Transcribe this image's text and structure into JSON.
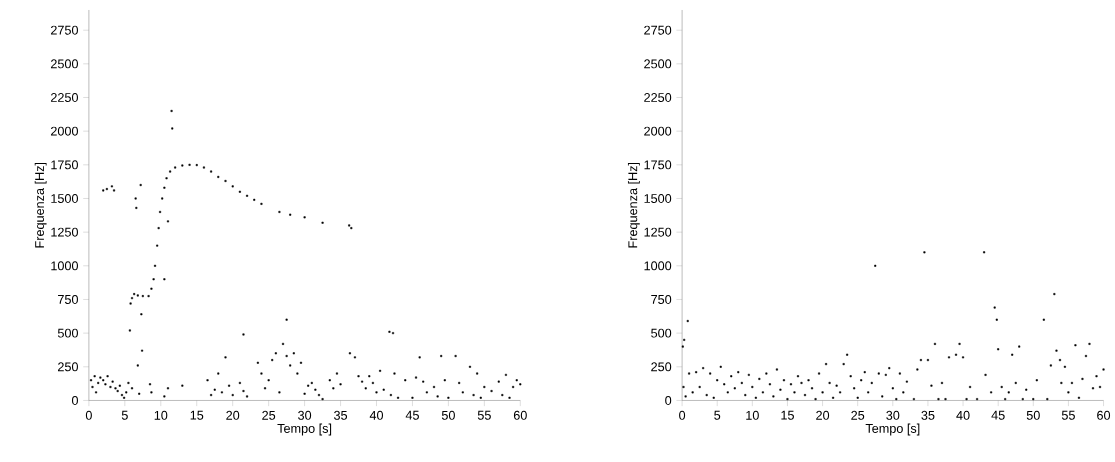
{
  "chart_data": [
    {
      "type": "scatter",
      "xlabel": "Tempo [s]",
      "ylabel": "Frequenza [Hz]",
      "color": "#000000",
      "marker": "square",
      "xlim": [
        0,
        60
      ],
      "ylim": [
        0,
        2900
      ],
      "xticks": [
        0,
        5,
        10,
        15,
        20,
        25,
        30,
        35,
        40,
        45,
        50,
        55,
        60
      ],
      "yticks": [
        0,
        250,
        500,
        750,
        1000,
        1250,
        1500,
        1750,
        2000,
        2250,
        2500,
        2750
      ],
      "x": [
        2,
        2.5,
        3.2,
        3.5,
        6.5,
        6.6,
        5.8,
        6,
        6.3,
        6.8,
        7.5,
        8.3,
        8.7,
        9,
        9.2,
        9.5,
        9.7,
        9.9,
        10.2,
        10.5,
        10.8,
        11.3,
        12,
        13,
        14,
        15,
        16,
        17,
        18,
        19,
        20,
        21,
        22,
        23,
        24,
        26.5,
        28,
        30,
        32.5,
        36.2,
        36.5,
        11.5,
        11.6,
        11,
        10.5,
        7.2,
        5.7,
        7.3,
        7.4,
        6.8,
        21.5,
        27.5,
        41.8,
        42.3,
        0.3,
        0.5,
        0.8,
        1,
        1.3,
        1.6,
        2,
        2.3,
        2.6,
        3,
        3.3,
        3.7,
        4,
        4.3,
        4.6,
        4.9,
        5.2,
        5.5,
        6,
        7,
        8.5,
        8.7,
        10.5,
        11,
        13,
        16.5,
        17,
        17.5,
        18,
        18.5,
        19,
        19.5,
        20,
        21,
        21.5,
        22,
        23.5,
        24,
        24.5,
        25,
        25.5,
        26,
        26.5,
        27,
        27.5,
        28,
        28.5,
        29,
        29.5,
        30,
        30.5,
        31,
        31.5,
        32,
        32.5,
        33.5,
        34,
        34.5,
        35,
        36.3,
        37,
        37.5,
        38,
        38.5,
        39,
        39.5,
        40,
        40.5,
        41,
        42,
        42.5,
        43,
        44,
        45,
        45.5,
        46,
        46.5,
        47,
        48,
        48.5,
        49,
        49.5,
        50,
        51,
        51.5,
        52,
        53,
        53.5,
        54,
        54.5,
        55,
        56,
        57,
        57.5,
        58,
        58.5,
        59,
        59.5,
        60
      ],
      "values": [
        1560,
        1570,
        1590,
        1560,
        1500,
        1430,
        720,
        760,
        790,
        780,
        775,
        775,
        830,
        900,
        1000,
        1150,
        1280,
        1400,
        1500,
        1580,
        1650,
        1700,
        1730,
        1745,
        1750,
        1748,
        1730,
        1700,
        1660,
        1630,
        1590,
        1550,
        1520,
        1490,
        1460,
        1400,
        1380,
        1360,
        1320,
        1300,
        1280,
        2150,
        2020,
        1330,
        900,
        1600,
        520,
        640,
        370,
        260,
        490,
        600,
        510,
        500,
        150,
        100,
        180,
        60,
        130,
        170,
        150,
        120,
        180,
        100,
        140,
        90,
        70,
        110,
        40,
        20,
        60,
        130,
        90,
        50,
        120,
        60,
        30,
        90,
        110,
        150,
        40,
        80,
        200,
        60,
        320,
        110,
        40,
        130,
        70,
        30,
        280,
        200,
        90,
        150,
        300,
        350,
        60,
        420,
        330,
        260,
        350,
        200,
        280,
        50,
        110,
        130,
        80,
        40,
        10,
        150,
        90,
        200,
        120,
        350,
        320,
        180,
        140,
        90,
        180,
        130,
        60,
        220,
        80,
        40,
        200,
        20,
        150,
        20,
        170,
        320,
        140,
        60,
        100,
        30,
        330,
        150,
        20,
        330,
        130,
        60,
        250,
        40,
        200,
        20,
        100,
        70,
        140,
        40,
        190,
        20,
        100,
        150,
        120
      ]
    },
    {
      "type": "scatter",
      "xlabel": "Tempo [s]",
      "ylabel": "Frequenza [Hz]",
      "color": "#000000",
      "marker": "square",
      "xlim": [
        0,
        60
      ],
      "ylim": [
        0,
        2900
      ],
      "xticks": [
        0,
        5,
        10,
        15,
        20,
        25,
        30,
        35,
        40,
        45,
        50,
        55,
        60
      ],
      "yticks": [
        0,
        250,
        500,
        750,
        1000,
        1250,
        1500,
        1750,
        2000,
        2250,
        2500,
        2750
      ],
      "x": [
        0.2,
        0.5,
        1,
        1.5,
        2,
        2.5,
        3,
        3.5,
        4,
        4.5,
        5,
        5.5,
        6,
        6.5,
        7,
        7.5,
        8,
        8.5,
        9,
        9.5,
        10,
        10.5,
        11,
        11.5,
        12,
        12.5,
        13,
        13.5,
        14,
        14.5,
        15,
        15.5,
        16,
        16.5,
        17,
        17.5,
        18,
        18.5,
        19,
        19.5,
        20,
        20.5,
        21,
        21.5,
        22,
        22.5,
        23,
        23.5,
        24,
        24.5,
        25,
        25.5,
        26,
        26.5,
        27,
        27.5,
        28,
        28.5,
        29,
        29.5,
        30,
        30.5,
        31,
        31.5,
        32,
        33,
        33.5,
        34,
        34.5,
        35,
        35.5,
        36,
        36.5,
        37,
        37.5,
        38,
        39,
        39.5,
        40,
        40.5,
        41,
        42,
        43,
        43.2,
        44,
        44.5,
        44.8,
        45,
        45.5,
        46,
        46.5,
        47,
        47.5,
        48,
        48.5,
        49,
        50,
        50.5,
        51.5,
        52,
        52.5,
        53,
        53.3,
        53.8,
        54,
        54.5,
        55,
        55.5,
        56,
        56.5,
        57,
        57.5,
        58,
        58.5,
        59,
        59.5,
        60,
        0.8,
        0.3,
        0.1
      ],
      "values": [
        100,
        30,
        200,
        60,
        210,
        100,
        240,
        40,
        200,
        20,
        150,
        250,
        120,
        60,
        180,
        90,
        210,
        130,
        40,
        190,
        100,
        20,
        160,
        60,
        200,
        120,
        30,
        230,
        80,
        150,
        10,
        120,
        60,
        180,
        130,
        40,
        150,
        90,
        10,
        200,
        60,
        270,
        130,
        20,
        110,
        60,
        270,
        340,
        180,
        90,
        20,
        150,
        210,
        60,
        130,
        1000,
        200,
        30,
        190,
        240,
        90,
        10,
        200,
        60,
        140,
        10,
        230,
        300,
        1100,
        300,
        110,
        420,
        10,
        130,
        10,
        320,
        340,
        420,
        320,
        10,
        100,
        10,
        1100,
        190,
        60,
        690,
        600,
        380,
        100,
        10,
        60,
        340,
        130,
        400,
        10,
        80,
        10,
        150,
        600,
        10,
        260,
        790,
        370,
        300,
        130,
        250,
        60,
        130,
        410,
        20,
        160,
        330,
        420,
        90,
        180,
        100,
        230,
        590,
        450,
        400
      ]
    }
  ]
}
